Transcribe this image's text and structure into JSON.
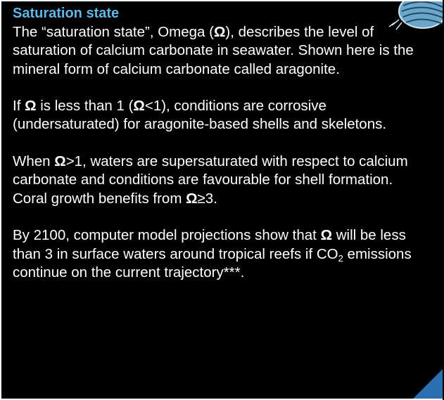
{
  "header": {
    "title": "Saturation state"
  },
  "paragraphs": [
    {
      "runs": [
        {
          "text": "The “saturation state”, Omega ("
        },
        {
          "text": "Ω",
          "style": "bold"
        },
        {
          "text": "), describes the level of saturation of calcium carbonate in seawater. Shown here is the mineral form of calcium carbonate called aragonite."
        }
      ]
    },
    {
      "runs": [
        {
          "text": "If "
        },
        {
          "text": "Ω",
          "style": "bold"
        },
        {
          "text": " is less than 1 ("
        },
        {
          "text": "Ω",
          "style": "bold"
        },
        {
          "text": "<1), conditions are corrosive (undersaturated) for aragonite-based shells and skeletons."
        }
      ]
    },
    {
      "runs": [
        {
          "text": "When "
        },
        {
          "text": "Ω",
          "style": "bold"
        },
        {
          "text": ">1, waters are supersaturated with respect to calcium carbonate and conditions are favourable for shell formation. Coral growth benefits from "
        },
        {
          "text": "Ω",
          "style": "bold"
        },
        {
          "text": "≥3."
        }
      ]
    },
    {
      "runs": [
        {
          "text": "By 2100, computer model projections show that "
        },
        {
          "text": "Ω",
          "style": "bold"
        },
        {
          "text": " will be less than 3 in surface waters around tropical reefs if CO"
        },
        {
          "text": "2",
          "style": "sub"
        },
        {
          "text": " emissions continue on the current trajectory***."
        }
      ]
    }
  ]
}
